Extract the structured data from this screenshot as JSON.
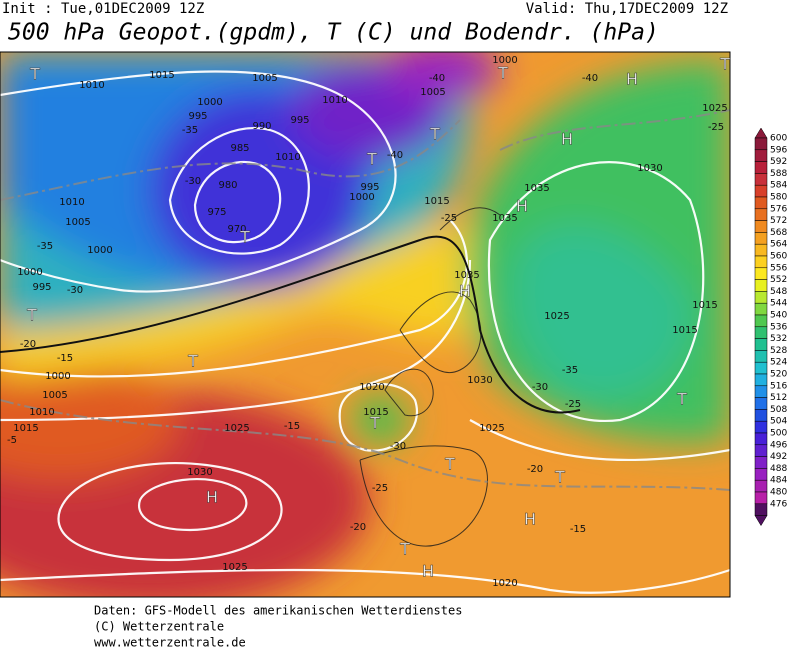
{
  "header": {
    "init": "Init : Tue,01DEC2009 12Z",
    "valid": "Valid: Thu,17DEC2009 12Z",
    "title": "500 hPa Geopot.(gpdm), T (C) und Bodendr. (hPa)"
  },
  "colorbar": {
    "ticks": [
      600,
      596,
      592,
      588,
      584,
      580,
      576,
      572,
      568,
      564,
      560,
      556,
      552,
      548,
      544,
      540,
      536,
      532,
      528,
      524,
      520,
      516,
      512,
      508,
      504,
      500,
      496,
      492,
      488,
      484,
      480,
      476
    ],
    "colors": [
      "#8b1a3a",
      "#a01c3c",
      "#b8203a",
      "#c8303a",
      "#d8402a",
      "#e05a20",
      "#e87020",
      "#f08a20",
      "#f4a020",
      "#f8b820",
      "#fcd020",
      "#fce820",
      "#e8f020",
      "#b8e830",
      "#80d840",
      "#50c850",
      "#30c070",
      "#20c090",
      "#20c0b0",
      "#20c0d0",
      "#20b0e0",
      "#2090e8",
      "#2070e8",
      "#2050e0",
      "#3030e0",
      "#4820d8",
      "#6020d0",
      "#8020c8",
      "#9820c0",
      "#a820b0",
      "#b820a8",
      "#501060"
    ]
  },
  "map": {
    "labels": [
      "T",
      "1010",
      "1015",
      "1005",
      "1000",
      "995",
      "-35",
      "990",
      "995",
      "985",
      "1010",
      "-30",
      "980",
      "975",
      "970",
      "T",
      "1005",
      "1010",
      "-35",
      "1000",
      "1000",
      "995",
      "-30",
      "T",
      "-20",
      "-15",
      "1000",
      "1005",
      "1010",
      "1015",
      "-5",
      "1030",
      "H",
      "1025",
      "-15",
      "1020",
      "1015",
      "T",
      "-30",
      "-25",
      "-20",
      "1025",
      "T",
      "H",
      "1020",
      "1025",
      "T",
      "-20",
      "T",
      "H",
      "-15",
      "H",
      "-40",
      "H",
      "1030",
      "1035",
      "H",
      "1035",
      "T",
      "T",
      "-40",
      "1035",
      "H",
      "1025",
      "1015",
      "-35",
      "-30",
      "-25",
      "1030",
      "T",
      "1015",
      "1025",
      "-25",
      "T",
      "1000",
      "T",
      "-40",
      "1005",
      "1015",
      "-25",
      "995",
      "1000",
      "1010",
      "T"
    ]
  },
  "footer": {
    "line1": "Daten: GFS-Modell des amerikanischen Wetterdienstes",
    "line2": "(C) Wetterzentrale",
    "line3": "www.wetterzentrale.de"
  }
}
